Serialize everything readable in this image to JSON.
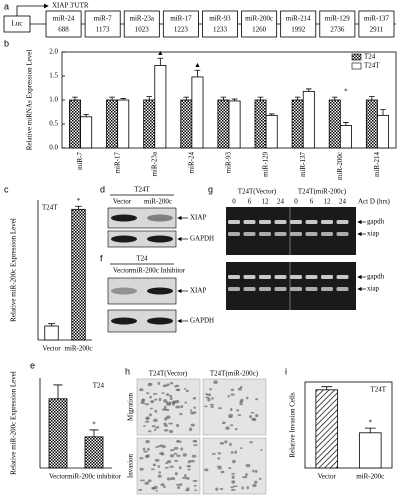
{
  "panel_a": {
    "panel": "a",
    "promoter": "Luc",
    "utr_label": "XIAP 3'UTR",
    "sites": [
      {
        "name": "miR-24",
        "position": 688
      },
      {
        "name": "miR-7",
        "position": 1173
      },
      {
        "name": "miR-23a",
        "position": 1023
      },
      {
        "name": "miR-17",
        "position": 1223
      },
      {
        "name": "miR-93",
        "position": 1233
      },
      {
        "name": "miR-200c",
        "position": 1260
      },
      {
        "name": "miR-214",
        "position": 1992
      },
      {
        "name": "miR-129",
        "position": 2736
      },
      {
        "name": "miR-137",
        "position": 2911
      }
    ]
  },
  "chart_data": [
    {
      "type": "bar",
      "panel": "b",
      "y_label": "Relative miRNAs Expression Level",
      "frame": "box",
      "legend": "upper right",
      "categories": [
        "miR-7",
        "miR-17",
        "miR-23a",
        "miR-24",
        "miR-93",
        "miR-129",
        "miR-137",
        "miR-200c",
        "miR-214"
      ],
      "series": [
        {
          "name": "T24",
          "pattern": "checker",
          "values": [
            1.0,
            1.0,
            1.0,
            1.0,
            1.0,
            1.0,
            1.0,
            1.0,
            1.0
          ],
          "errors": [
            0.06,
            0.06,
            0.07,
            0.06,
            0.06,
            0.06,
            0.06,
            0.06,
            0.07
          ]
        },
        {
          "name": "T24T",
          "pattern": "white",
          "values": [
            0.65,
            1.0,
            1.72,
            1.48,
            0.98,
            0.68,
            1.18,
            0.47,
            0.68
          ],
          "errors": [
            0.05,
            0.03,
            0.15,
            0.14,
            0.04,
            0.03,
            0.05,
            0.06,
            0.12
          ]
        }
      ],
      "annotations": [
        {
          "text": "▲",
          "category": "miR-23a"
        },
        {
          "text": "▲",
          "category": "miR-24"
        },
        {
          "text": "*",
          "category": "miR-200c"
        }
      ],
      "ylim": [
        0,
        2.0
      ],
      "yticks": [
        {
          "value": 0,
          "label": "0.0"
        },
        {
          "value": 0.5,
          "label": "0.5"
        },
        {
          "value": 1.0,
          "label": "1.0"
        },
        {
          "value": 1.5,
          "label": "1.5"
        },
        {
          "value": 2.0,
          "label": "2.0"
        }
      ]
    },
    {
      "type": "bar",
      "panel": "c",
      "y_label": "Relative miR-200c Expression Level",
      "inset_label": "T24T",
      "frame": "axes",
      "categories": [
        "Vector",
        "miR-200c"
      ],
      "values": [
        18,
        168
      ],
      "errors": [
        3,
        4
      ],
      "patterns": [
        "white",
        "checker"
      ],
      "annotations": [
        {
          "text": "*",
          "category": "miR-200c"
        }
      ],
      "ylim": [
        0,
        180
      ]
    },
    {
      "type": "bar",
      "panel": "e",
      "y_label": "Relative miR-200c Expression Level",
      "inset_label": "T24",
      "frame": "axes",
      "categories": [
        "Vector",
        "miR-200c inhibitor"
      ],
      "values": [
        1.0,
        0.45
      ],
      "errors": [
        0.2,
        0.1
      ],
      "patterns": [
        "checker",
        "checker"
      ],
      "annotations": [
        {
          "text": "*",
          "category": "miR-200c inhibitor"
        }
      ],
      "ylim": [
        0,
        1.3
      ]
    },
    {
      "type": "bar",
      "panel": "i",
      "y_label": "Relative Invasion Cells",
      "inset_label": "T24T",
      "frame": "box",
      "categories": [
        "Vector",
        "miR-200c"
      ],
      "values": [
        1.0,
        0.45
      ],
      "errors": [
        0.04,
        0.06
      ],
      "patterns": [
        "hatch",
        "white"
      ],
      "annotations": [
        {
          "text": "*",
          "category": "miR-200c"
        }
      ],
      "ylim": [
        0,
        1.1
      ]
    }
  ],
  "blot_d": {
    "panel": "d",
    "cell_line": "T24T",
    "lanes": [
      "Vector",
      "miR-200c"
    ],
    "bands": [
      "XIAP",
      "GAPDH"
    ]
  },
  "blot_f": {
    "panel": "f",
    "cell_line": "T24",
    "lanes": [
      "Vector",
      "miR-200c Inhibitor"
    ],
    "bands": [
      "XIAP",
      "GAPDH"
    ]
  },
  "gel_g": {
    "panel": "g",
    "groups": [
      "T24T(Vector)",
      "T24T(miR-200c)"
    ],
    "times": [
      0,
      6,
      12,
      24,
      0,
      6,
      12,
      24
    ],
    "time_label": "Act D (hrs)",
    "bands": [
      "gapdh",
      "xiap"
    ]
  },
  "images_h": {
    "panel": "h",
    "columns": [
      "T24T(Vector)",
      "T24T(miR-200c)"
    ],
    "rows": [
      "Migration",
      "Invasion"
    ]
  }
}
